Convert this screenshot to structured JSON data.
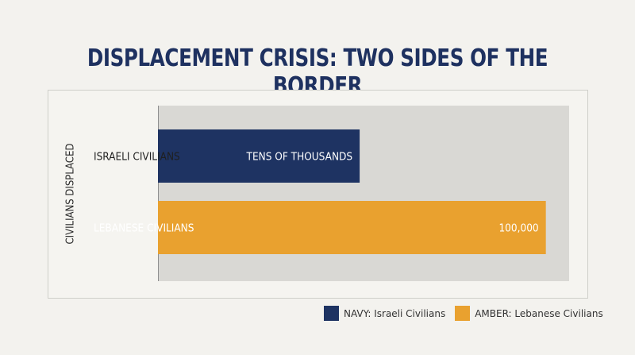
{
  "chart_data": {
    "type": "bar",
    "orientation": "horizontal",
    "title": "DISPLACEMENT CRISIS: TWO SIDES OF THE BORDER",
    "ylabel": "CIVILIANS DISPLACED",
    "xlabel": "",
    "categories": [
      "ISRAELI CIVILIANS",
      "LEBANESE CIVILIANS"
    ],
    "values": [
      52000,
      100000
    ],
    "data_labels": [
      "TENS OF THOUSANDS",
      "100,000"
    ],
    "colors": [
      "#1e3362",
      "#e9a12f"
    ],
    "xlim": [
      0,
      106000
    ],
    "grid": false,
    "legend_position": "bottom-right",
    "legend": [
      {
        "label": "NAVY: Israeli Civilians",
        "color": "#1e3362"
      },
      {
        "label": "AMBER: Lebanese Civilians",
        "color": "#e9a12f"
      }
    ]
  }
}
